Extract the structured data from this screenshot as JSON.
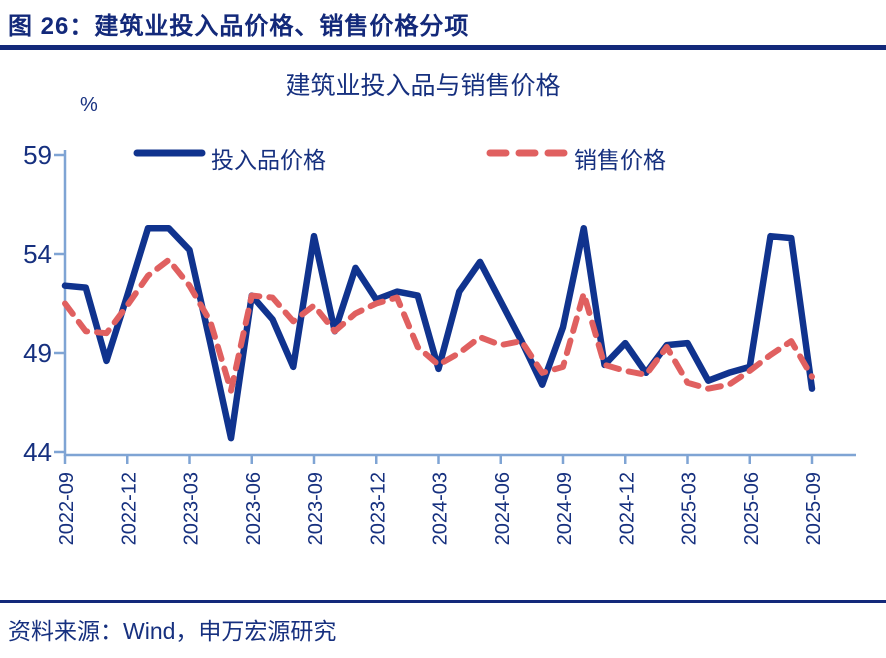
{
  "header": {
    "title": "图 26：建筑业投入品价格、销售价格分项"
  },
  "source": {
    "text": "资料来源：Wind，申万宏源研究"
  },
  "colors": {
    "navy": "#13297a",
    "line_blue": "#10338e",
    "line_red": "#e06060",
    "axis_blue": "#7fa4d4",
    "text_navy": "#16307f"
  },
  "chart_data": {
    "type": "line",
    "title": "建筑业投入品与销售价格",
    "unit_label": "%",
    "grid": false,
    "legend_position": "top",
    "ylim": [
      44,
      59
    ],
    "yticks": [
      59,
      54,
      49,
      44
    ],
    "x": [
      "2022-09",
      "2022-10",
      "2022-11",
      "2022-12",
      "2023-01",
      "2023-02",
      "2023-03",
      "2023-04",
      "2023-05",
      "2023-06",
      "2023-07",
      "2023-08",
      "2023-09",
      "2023-10",
      "2023-11",
      "2023-12",
      "2024-01",
      "2024-02",
      "2024-03",
      "2024-04",
      "2024-05",
      "2024-06",
      "2024-07",
      "2024-08",
      "2024-09",
      "2024-10",
      "2024-11",
      "2024-12",
      "2025-01",
      "2025-02",
      "2025-03",
      "2025-04",
      "2025-05",
      "2025-06",
      "2025-07",
      "2025-08",
      "2025-09"
    ],
    "xtick_labels": [
      "2022-09",
      "2022-12",
      "2023-03",
      "2023-06",
      "2023-09",
      "2023-12",
      "2024-03",
      "2024-06",
      "2024-09",
      "2024-12",
      "2025-03",
      "2025-06",
      "2025-09"
    ],
    "series": [
      {
        "name": "投入品价格",
        "style": "solid",
        "color": "#10338e",
        "values": [
          52.4,
          52.3,
          48.6,
          51.9,
          55.3,
          55.3,
          54.2,
          49.5,
          44.7,
          51.9,
          50.7,
          48.3,
          54.9,
          50.1,
          53.3,
          51.7,
          52.1,
          51.9,
          48.2,
          52.1,
          53.6,
          51.6,
          49.6,
          47.4,
          50.3,
          55.3,
          48.4,
          49.5,
          48.0,
          49.4,
          49.5,
          47.6,
          48.0,
          48.3,
          54.9,
          54.8,
          47.2
        ]
      },
      {
        "name": "销售价格",
        "style": "dashed",
        "color": "#e06060",
        "values": [
          51.5,
          50.1,
          50.0,
          51.4,
          52.9,
          53.7,
          52.4,
          50.6,
          47.1,
          51.9,
          51.8,
          50.6,
          51.4,
          50.1,
          51.0,
          51.5,
          51.8,
          49.3,
          48.4,
          49.0,
          49.8,
          49.4,
          49.6,
          48.0,
          48.3,
          52.0,
          48.4,
          48.1,
          47.9,
          49.3,
          47.5,
          47.2,
          47.4,
          48.1,
          48.9,
          49.6,
          47.8
        ]
      }
    ]
  }
}
